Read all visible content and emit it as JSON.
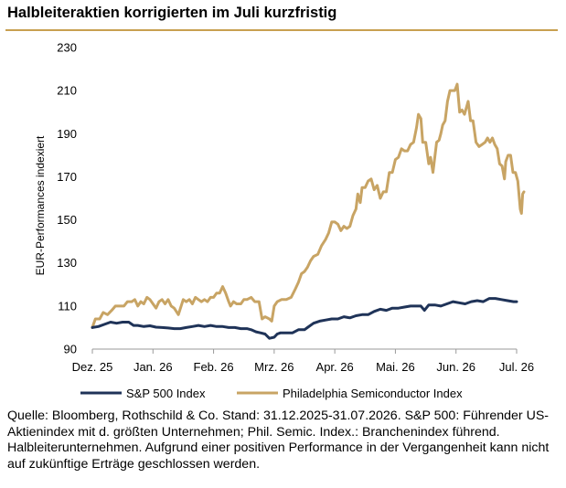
{
  "title": "Halbleiteraktien korrigierten im Juli kurzfristig",
  "source": "Quelle: Bloomberg, Rothschild & Co. Stand: 31.12.2025-31.07.2026. S&P 500: Führender US-Aktienindex mit d. größten Unternehmen; Phil. Semic. Index.: Branchenindex führend. Halbleiterunternehmen. Aufgrund einer positiven Performance in der Vergangenheit kann nicht auf zukünftige Erträge geschlossen werden.",
  "colors": {
    "sp500": "#1f3358",
    "sox": "#c8a464",
    "accent": "#c8a050"
  },
  "chart_data": {
    "type": "line",
    "title": "Halbleiteraktien korrigierten im Juli kurzfristig",
    "xlabel": "",
    "ylabel": "EUR-Performances indexiert",
    "ylim": [
      90,
      230
    ],
    "yticks": [
      90,
      110,
      130,
      150,
      170,
      190,
      210,
      230
    ],
    "xticks": [
      {
        "label": "Dez. 25",
        "x": 0
      },
      {
        "label": "Jan. 26",
        "x": 1
      },
      {
        "label": "Feb. 26",
        "x": 2
      },
      {
        "label": "Mrz. 26",
        "x": 3
      },
      {
        "label": "Apr. 26",
        "x": 4
      },
      {
        "label": "Mai. 26",
        "x": 5
      },
      {
        "label": "Jun. 26",
        "x": 6
      },
      {
        "label": "Jul. 26",
        "x": 7
      }
    ],
    "xlim": [
      0,
      7
    ],
    "grid": false,
    "legend_position": "bottom",
    "series": [
      {
        "name": "S&P 500 Index",
        "color": "#1f3358",
        "points": [
          [
            0.0,
            100
          ],
          [
            0.1,
            100.5
          ],
          [
            0.2,
            101.5
          ],
          [
            0.3,
            102.5
          ],
          [
            0.4,
            102
          ],
          [
            0.5,
            102.5
          ],
          [
            0.6,
            102.5
          ],
          [
            0.68,
            101
          ],
          [
            0.75,
            101
          ],
          [
            0.85,
            100.5
          ],
          [
            0.95,
            100.8
          ],
          [
            1.05,
            100.2
          ],
          [
            1.15,
            100
          ],
          [
            1.25,
            99.8
          ],
          [
            1.35,
            99.5
          ],
          [
            1.45,
            99.5
          ],
          [
            1.55,
            100
          ],
          [
            1.65,
            100.5
          ],
          [
            1.75,
            101
          ],
          [
            1.85,
            100.5
          ],
          [
            1.95,
            101
          ],
          [
            2.05,
            100.5
          ],
          [
            2.15,
            100.5
          ],
          [
            2.25,
            100
          ],
          [
            2.35,
            100
          ],
          [
            2.45,
            99.5
          ],
          [
            2.55,
            99.5
          ],
          [
            2.62,
            99
          ],
          [
            2.7,
            98
          ],
          [
            2.78,
            97.5
          ],
          [
            2.85,
            97
          ],
          [
            2.92,
            95
          ],
          [
            3.0,
            95.5
          ],
          [
            3.05,
            97
          ],
          [
            3.1,
            97.5
          ],
          [
            3.2,
            97.5
          ],
          [
            3.3,
            97.5
          ],
          [
            3.4,
            99
          ],
          [
            3.5,
            99
          ],
          [
            3.55,
            100
          ],
          [
            3.65,
            102
          ],
          [
            3.75,
            103
          ],
          [
            3.85,
            103.5
          ],
          [
            3.95,
            104
          ],
          [
            4.05,
            104
          ],
          [
            4.15,
            105
          ],
          [
            4.25,
            104.5
          ],
          [
            4.35,
            105.5
          ],
          [
            4.45,
            106
          ],
          [
            4.55,
            106
          ],
          [
            4.65,
            107.5
          ],
          [
            4.75,
            108.5
          ],
          [
            4.85,
            108
          ],
          [
            4.95,
            109
          ],
          [
            5.05,
            109
          ],
          [
            5.15,
            109.5
          ],
          [
            5.25,
            110
          ],
          [
            5.35,
            110
          ],
          [
            5.42,
            110
          ],
          [
            5.48,
            108
          ],
          [
            5.55,
            110.5
          ],
          [
            5.65,
            110.5
          ],
          [
            5.75,
            110
          ],
          [
            5.85,
            111
          ],
          [
            5.95,
            112
          ],
          [
            6.05,
            111.5
          ],
          [
            6.15,
            111
          ],
          [
            6.25,
            112
          ],
          [
            6.35,
            112.5
          ],
          [
            6.45,
            112
          ],
          [
            6.55,
            113.5
          ],
          [
            6.65,
            113.5
          ],
          [
            6.75,
            113
          ],
          [
            6.85,
            112.5
          ],
          [
            6.95,
            112
          ],
          [
            7.0,
            112
          ]
        ]
      },
      {
        "name": "Philadelphia Semiconductor Index",
        "color": "#c8a464",
        "points": [
          [
            0.0,
            100
          ],
          [
            0.05,
            104
          ],
          [
            0.12,
            104
          ],
          [
            0.18,
            107
          ],
          [
            0.25,
            106
          ],
          [
            0.32,
            108
          ],
          [
            0.38,
            110
          ],
          [
            0.45,
            110
          ],
          [
            0.52,
            110
          ],
          [
            0.58,
            112
          ],
          [
            0.65,
            112
          ],
          [
            0.7,
            113
          ],
          [
            0.75,
            110
          ],
          [
            0.8,
            112
          ],
          [
            0.85,
            111
          ],
          [
            0.9,
            114
          ],
          [
            0.95,
            113
          ],
          [
            1.0,
            111
          ],
          [
            1.05,
            109
          ],
          [
            1.1,
            112
          ],
          [
            1.15,
            113
          ],
          [
            1.2,
            111
          ],
          [
            1.25,
            113
          ],
          [
            1.3,
            110
          ],
          [
            1.35,
            109
          ],
          [
            1.42,
            106
          ],
          [
            1.5,
            113
          ],
          [
            1.55,
            112
          ],
          [
            1.6,
            113
          ],
          [
            1.65,
            111
          ],
          [
            1.7,
            114
          ],
          [
            1.75,
            113
          ],
          [
            1.8,
            112
          ],
          [
            1.85,
            113
          ],
          [
            1.9,
            112
          ],
          [
            1.95,
            114
          ],
          [
            2.0,
            114
          ],
          [
            2.05,
            116
          ],
          [
            2.1,
            116
          ],
          [
            2.15,
            119
          ],
          [
            2.2,
            116
          ],
          [
            2.25,
            112
          ],
          [
            2.28,
            110
          ],
          [
            2.33,
            112
          ],
          [
            2.38,
            111
          ],
          [
            2.45,
            111
          ],
          [
            2.5,
            113
          ],
          [
            2.55,
            113
          ],
          [
            2.62,
            114
          ],
          [
            2.68,
            112
          ],
          [
            2.75,
            112
          ],
          [
            2.8,
            104
          ],
          [
            2.85,
            105
          ],
          [
            2.92,
            104
          ],
          [
            2.96,
            103
          ],
          [
            3.0,
            110
          ],
          [
            3.05,
            112
          ],
          [
            3.12,
            113
          ],
          [
            3.2,
            113
          ],
          [
            3.28,
            114
          ],
          [
            3.35,
            118
          ],
          [
            3.4,
            121
          ],
          [
            3.45,
            125
          ],
          [
            3.5,
            126
          ],
          [
            3.55,
            128
          ],
          [
            3.6,
            131
          ],
          [
            3.65,
            133
          ],
          [
            3.72,
            134
          ],
          [
            3.78,
            138
          ],
          [
            3.85,
            141
          ],
          [
            3.9,
            144
          ],
          [
            3.95,
            149
          ],
          [
            4.0,
            149
          ],
          [
            4.05,
            148
          ],
          [
            4.1,
            145
          ],
          [
            4.15,
            147
          ],
          [
            4.2,
            146
          ],
          [
            4.25,
            147
          ],
          [
            4.3,
            152
          ],
          [
            4.35,
            155
          ],
          [
            4.38,
            162
          ],
          [
            4.42,
            158
          ],
          [
            4.45,
            165
          ],
          [
            4.5,
            165
          ],
          [
            4.55,
            168
          ],
          [
            4.6,
            169
          ],
          [
            4.65,
            164
          ],
          [
            4.7,
            166
          ],
          [
            4.75,
            160
          ],
          [
            4.8,
            163
          ],
          [
            4.85,
            163
          ],
          [
            4.9,
            172
          ],
          [
            4.95,
            172
          ],
          [
            5.0,
            178
          ],
          [
            5.05,
            179
          ],
          [
            5.1,
            183
          ],
          [
            5.15,
            182
          ],
          [
            5.2,
            182
          ],
          [
            5.25,
            185
          ],
          [
            5.3,
            186
          ],
          [
            5.35,
            193
          ],
          [
            5.38,
            199
          ],
          [
            5.42,
            197
          ],
          [
            5.45,
            186
          ],
          [
            5.5,
            186
          ],
          [
            5.55,
            176
          ],
          [
            5.58,
            179
          ],
          [
            5.62,
            172
          ],
          [
            5.68,
            186
          ],
          [
            5.72,
            187
          ],
          [
            5.75,
            190
          ],
          [
            5.78,
            194
          ],
          [
            5.82,
            196
          ],
          [
            5.86,
            205
          ],
          [
            5.9,
            210
          ],
          [
            5.94,
            210
          ],
          [
            5.98,
            210
          ],
          [
            6.02,
            213
          ],
          [
            6.06,
            200
          ],
          [
            6.1,
            201
          ],
          [
            6.14,
            199
          ],
          [
            6.2,
            205
          ],
          [
            6.24,
            196
          ],
          [
            6.28,
            196
          ],
          [
            6.33,
            186
          ],
          [
            6.38,
            184
          ],
          [
            6.43,
            185
          ],
          [
            6.48,
            186
          ],
          [
            6.52,
            188
          ],
          [
            6.56,
            186
          ],
          [
            6.6,
            188
          ],
          [
            6.64,
            185
          ],
          [
            6.68,
            183
          ],
          [
            6.72,
            176
          ],
          [
            6.76,
            175
          ],
          [
            6.8,
            169
          ],
          [
            6.82,
            177
          ],
          [
            6.86,
            180
          ],
          [
            6.9,
            180
          ],
          [
            6.94,
            172
          ],
          [
            6.98,
            172
          ],
          [
            7.02,
            168
          ],
          [
            7.06,
            155
          ],
          [
            7.08,
            153
          ],
          [
            7.1,
            162
          ],
          [
            7.12,
            163
          ]
        ]
      }
    ]
  }
}
